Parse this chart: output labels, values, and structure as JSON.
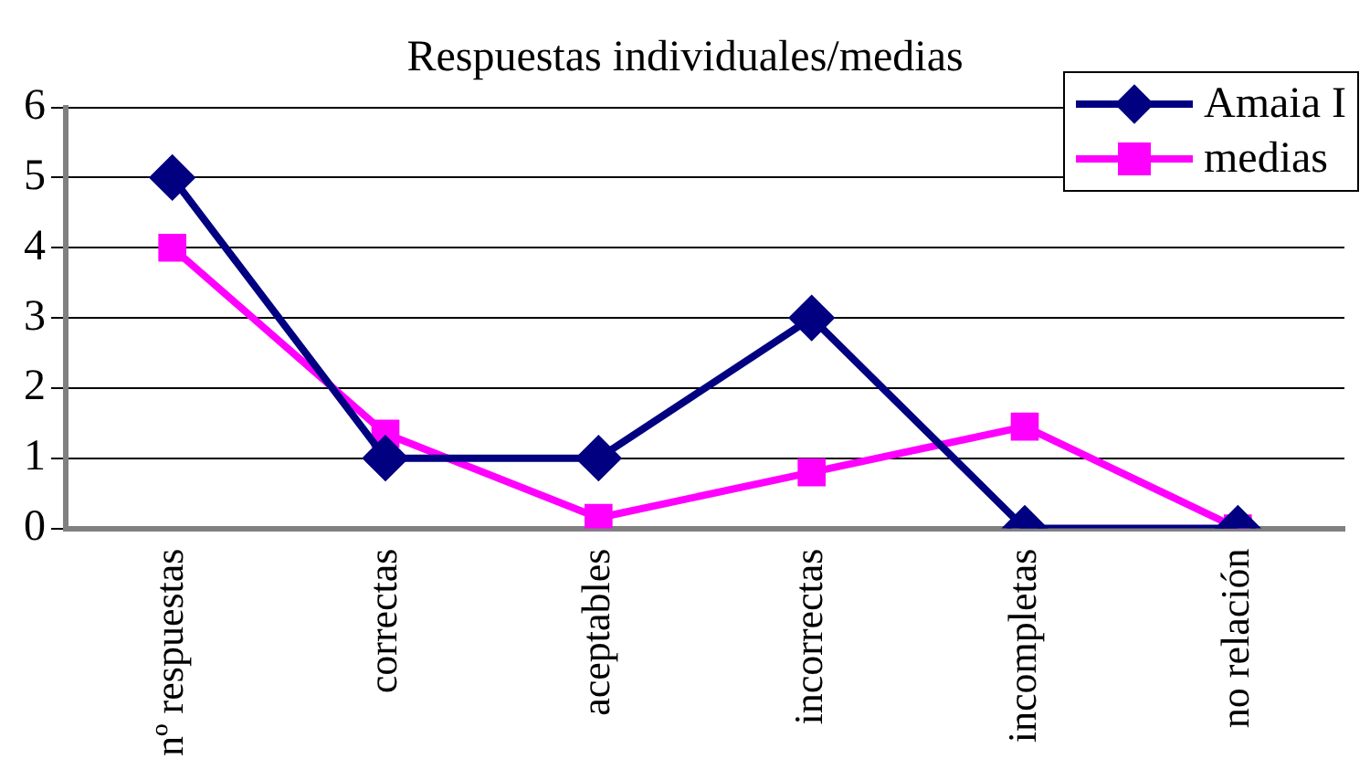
{
  "chart_data": {
    "type": "line",
    "title": "Respuestas individuales/medias",
    "categories": [
      "nº respuestas",
      "correctas",
      "aceptables",
      "incorrectas",
      "incompletas",
      "no relación"
    ],
    "series": [
      {
        "name": "Amaia I",
        "color": "#000080",
        "marker": "diamond",
        "values": [
          5,
          1,
          1,
          3,
          0,
          0
        ]
      },
      {
        "name": "medias",
        "color": "#ff00ff",
        "marker": "square",
        "values": [
          4,
          1.35,
          0.15,
          0.8,
          1.45,
          0
        ]
      }
    ],
    "ylim": [
      0,
      6
    ],
    "yticks": [
      0,
      1,
      2,
      3,
      4,
      5,
      6
    ],
    "grid": "y",
    "legend": "top right"
  }
}
